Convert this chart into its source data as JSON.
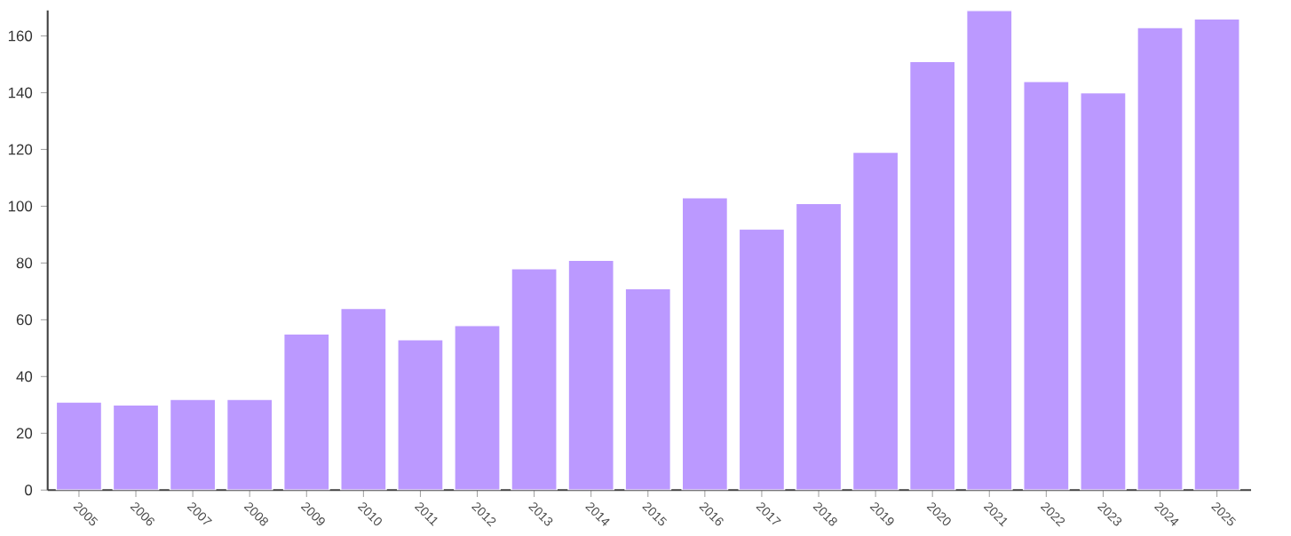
{
  "chart_data": {
    "type": "bar",
    "categories": [
      "2005",
      "2006",
      "2007",
      "2008",
      "2009",
      "2010",
      "2011",
      "2012",
      "2013",
      "2014",
      "2015",
      "2016",
      "2017",
      "2018",
      "2019",
      "2020",
      "2021",
      "2022",
      "2023",
      "2024",
      "2025"
    ],
    "values": [
      31,
      30,
      32,
      32,
      55,
      64,
      53,
      58,
      78,
      81,
      71,
      103,
      92,
      101,
      119,
      151,
      169,
      144,
      140,
      163,
      166
    ],
    "color": "#bb99ff",
    "ylim": [
      0,
      169
    ],
    "yticks": [
      0,
      20,
      40,
      60,
      80,
      100,
      120,
      140,
      160
    ],
    "grid": false
  }
}
